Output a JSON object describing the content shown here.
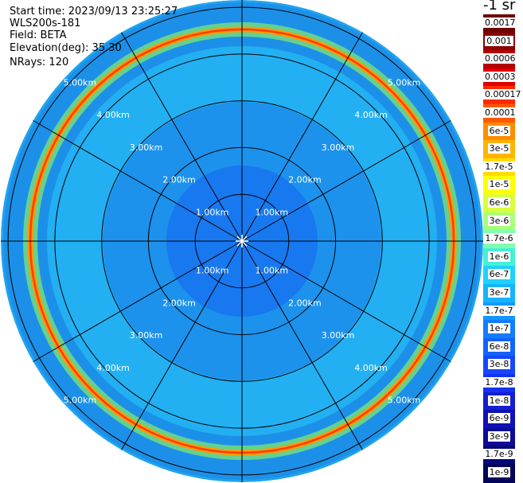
{
  "info": {
    "start_time": "Start time: 2023/09/13 23:25:27",
    "instrument": "WLS200s-181",
    "field": "Field: BETA",
    "elevation": "Elevation(deg): 35.30",
    "nrays": "NRays: 120"
  },
  "colorbar": {
    "unit_label": "-1 sr",
    "ticks": [
      "0.0017",
      "0.001",
      "0.0006",
      "0.0003",
      "0.00017",
      "0.0001",
      "6e-5",
      "3e-5",
      "1.7e-5",
      "1e-5",
      "6e-6",
      "3e-6",
      "1.7e-6",
      "1e-6",
      "6e-7",
      "3e-7",
      "1.7e-7",
      "1e-7",
      "6e-8",
      "3e-8",
      "1.7e-8",
      "1e-8",
      "6e-9",
      "3e-9",
      "1.7e-9",
      "1e-9"
    ],
    "colors": [
      "#6e0000",
      "#8c0000",
      "#b40000",
      "#e00000",
      "#ff2a00",
      "#ff5a00",
      "#ff8c00",
      "#ffb400",
      "#ffdc00",
      "#ffff00",
      "#d8ff3c",
      "#a8ff78",
      "#80ffb0",
      "#46f0d8",
      "#1ed2ff",
      "#16b4ff",
      "#1496ff",
      "#147cff",
      "#1462ff",
      "#1448ff",
      "#1432f0",
      "#141ed2",
      "#1010b4",
      "#0c0c96",
      "#080878",
      "#04045a"
    ]
  },
  "range_labels": [
    "1.00km",
    "2.00km",
    "3.00km",
    "4.00km",
    "5.00km"
  ]
}
